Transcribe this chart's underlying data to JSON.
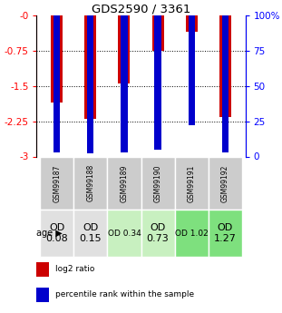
{
  "title": "GDS2590 / 3361",
  "samples": [
    "GSM99187",
    "GSM99188",
    "GSM99189",
    "GSM99190",
    "GSM99191",
    "GSM99192"
  ],
  "log2_ratios": [
    -1.85,
    -2.2,
    -1.45,
    -0.75,
    -0.35,
    -2.15
  ],
  "percentile_ranks": [
    3,
    2,
    3,
    5,
    22,
    3
  ],
  "age_labels": [
    "OD\n0.08",
    "OD\n0.15",
    "OD 0.34",
    "OD\n0.73",
    "OD 1.02",
    "OD\n1.27"
  ],
  "age_bg_colors": [
    "#e0e0e0",
    "#e0e0e0",
    "#c8f0c0",
    "#c8f0c0",
    "#7ee07e",
    "#7ee07e"
  ],
  "age_fontsize_big": 8,
  "age_fontsize_small": 6.5,
  "age_big": [
    true,
    true,
    false,
    true,
    false,
    true
  ],
  "ylim_left": [
    -3,
    0
  ],
  "ylim_right": [
    0,
    100
  ],
  "yticks_left": [
    0,
    -0.75,
    -1.5,
    -2.25,
    -3
  ],
  "yticks_right": [
    0,
    25,
    50,
    75,
    100
  ],
  "bar_color": "#cc0000",
  "percentile_color": "#0000cc",
  "bar_width": 0.35,
  "sample_bg_color": "#cccccc",
  "legend_red_label": "log2 ratio",
  "legend_blue_label": "percentile rank within the sample",
  "age_row_label": "age"
}
